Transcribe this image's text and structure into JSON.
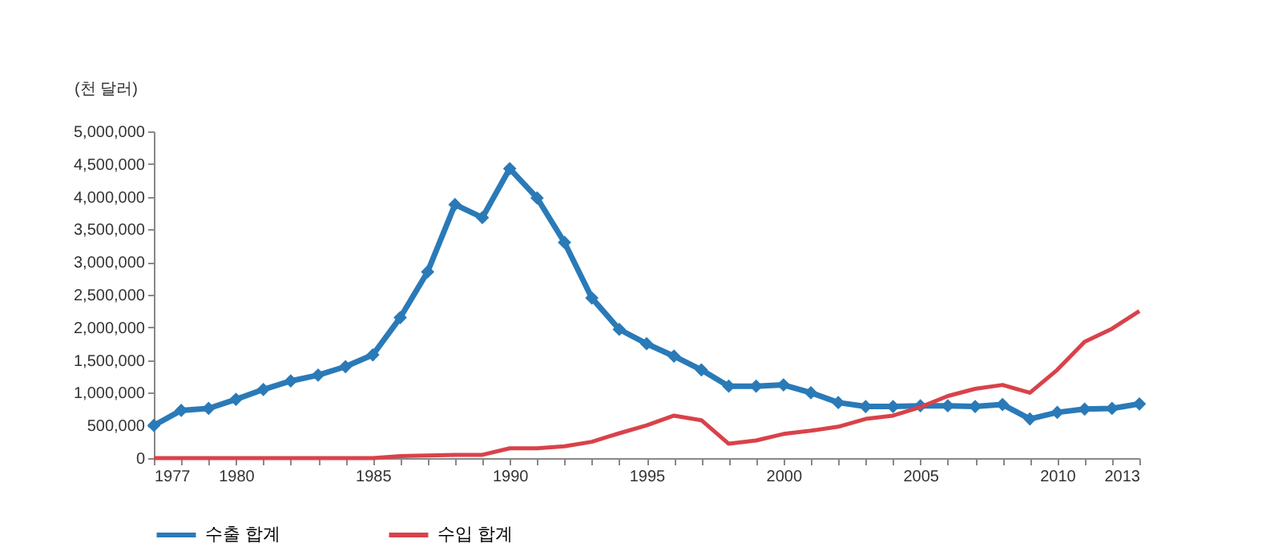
{
  "chart_data": {
    "type": "line",
    "ylabel": "(천 달러)",
    "x": [
      1977,
      1978,
      1979,
      1980,
      1981,
      1982,
      1983,
      1984,
      1985,
      1986,
      1987,
      1988,
      1989,
      1990,
      1991,
      1992,
      1993,
      1994,
      1995,
      1996,
      1997,
      1998,
      1999,
      2000,
      2001,
      2002,
      2003,
      2004,
      2005,
      2006,
      2007,
      2008,
      2009,
      2010,
      2011,
      2012,
      2013
    ],
    "series": [
      {
        "name": "수출 합계",
        "color": "#2a7ab8",
        "marker": "diamond",
        "values": [
          500000,
          730000,
          760000,
          900000,
          1050000,
          1180000,
          1270000,
          1400000,
          1580000,
          2150000,
          2850000,
          3880000,
          3680000,
          4430000,
          3980000,
          3300000,
          2450000,
          1970000,
          1750000,
          1560000,
          1350000,
          1100000,
          1100000,
          1120000,
          1000000,
          850000,
          790000,
          790000,
          800000,
          800000,
          790000,
          820000,
          600000,
          700000,
          750000,
          760000,
          830000
        ]
      },
      {
        "name": "수입 합계",
        "color": "#d9424a",
        "marker": "none",
        "values": [
          0,
          0,
          0,
          0,
          0,
          0,
          0,
          0,
          0,
          30000,
          40000,
          50000,
          50000,
          150000,
          150000,
          180000,
          250000,
          380000,
          500000,
          650000,
          580000,
          220000,
          270000,
          370000,
          420000,
          480000,
          600000,
          650000,
          780000,
          950000,
          1060000,
          1120000,
          1000000,
          1350000,
          1780000,
          1980000,
          2250000
        ]
      }
    ],
    "xlim": [
      1977,
      2013
    ],
    "xticks": [
      1977,
      {
        "value": 1978,
        "label": null
      },
      {
        "value": 1979,
        "label": null
      },
      1980,
      {
        "value": 1981,
        "label": null
      },
      {
        "value": 1982,
        "label": null
      },
      {
        "value": 1983,
        "label": null
      },
      {
        "value": 1984,
        "label": null
      },
      1985,
      {
        "value": 1986,
        "label": null
      },
      {
        "value": 1987,
        "label": null
      },
      {
        "value": 1988,
        "label": null
      },
      {
        "value": 1989,
        "label": null
      },
      1990,
      {
        "value": 1991,
        "label": null
      },
      {
        "value": 1992,
        "label": null
      },
      {
        "value": 1993,
        "label": null
      },
      {
        "value": 1994,
        "label": null
      },
      1995,
      {
        "value": 1996,
        "label": null
      },
      {
        "value": 1997,
        "label": null
      },
      {
        "value": 1998,
        "label": null
      },
      {
        "value": 1999,
        "label": null
      },
      2000,
      {
        "value": 2001,
        "label": null
      },
      {
        "value": 2002,
        "label": null
      },
      {
        "value": 2003,
        "label": null
      },
      {
        "value": 2004,
        "label": null
      },
      2005,
      {
        "value": 2006,
        "label": null
      },
      {
        "value": 2007,
        "label": null
      },
      {
        "value": 2008,
        "label": null
      },
      {
        "value": 2009,
        "label": null
      },
      2010,
      {
        "value": 2011,
        "label": null
      },
      {
        "value": 2012,
        "label": null
      },
      2013
    ],
    "ylim": [
      0,
      5000000
    ],
    "yticks": [
      0,
      {
        "value": 500000,
        "label": "500,000"
      },
      {
        "value": 1000000,
        "label": "1,000,000"
      },
      {
        "value": 1500000,
        "label": "1,500,000"
      },
      {
        "value": 2000000,
        "label": "2,000,000"
      },
      {
        "value": 2500000,
        "label": "2,500,000"
      },
      {
        "value": 3000000,
        "label": "3,000,000"
      },
      {
        "value": 3500000,
        "label": "3,500,000"
      },
      {
        "value": 4000000,
        "label": "4,000,000"
      },
      {
        "value": 4500000,
        "label": "4,500,000"
      },
      {
        "value": 5000000,
        "label": "5,000,000"
      }
    ],
    "grid": false,
    "legend": "bottom",
    "line_style": "solid"
  }
}
